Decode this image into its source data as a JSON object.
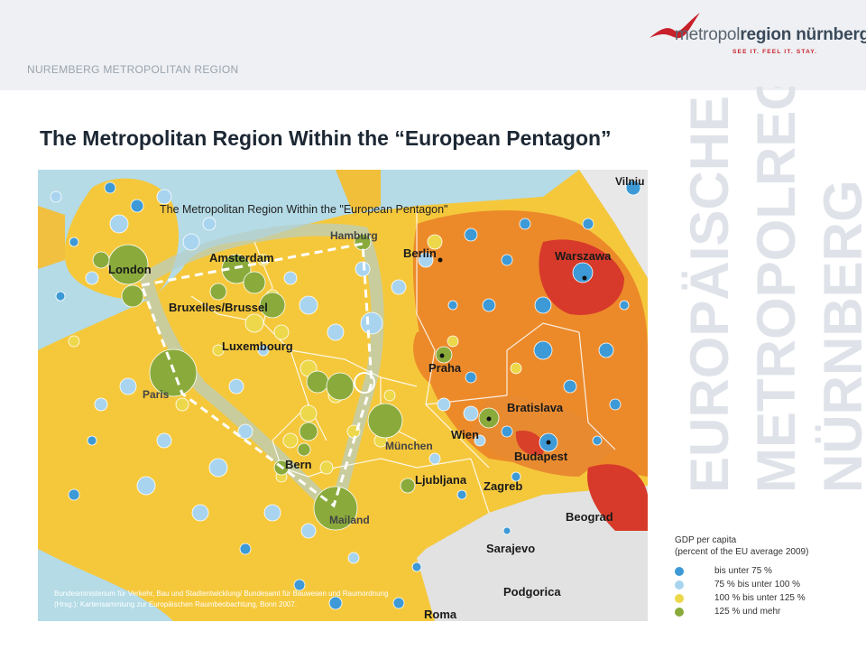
{
  "header": {
    "region_label": "NUREMBERG METROPOLITAN REGION",
    "logo_text_light": "metropol",
    "logo_text_bold": "region nürnberg",
    "logo_tagline": "SEE IT. FEEL IT. STAY."
  },
  "page_title": "The  Metropolitan Region Within the  “European Pentagon”",
  "watermark_lines": [
    "EUROPÄISCHE",
    "METROPOLREGION",
    "NÜRNBERG"
  ],
  "map": {
    "inset_title": "The Metropolitan Region Within the \"European Pentagon\"",
    "cities": [
      {
        "id": "hamburg",
        "name": "Hamburg"
      },
      {
        "id": "berlin",
        "name": "Berlin"
      },
      {
        "id": "warszawa",
        "name": "Warszawa"
      },
      {
        "id": "vilnius",
        "name": "Vilniu"
      },
      {
        "id": "amsterdam",
        "name": "Amsterdam"
      },
      {
        "id": "london",
        "name": "London"
      },
      {
        "id": "bruxelles",
        "name": "Bruxelles/Brussel"
      },
      {
        "id": "luxembourg",
        "name": "Luxembourg"
      },
      {
        "id": "praha",
        "name": "Praha"
      },
      {
        "id": "paris",
        "name": "Paris"
      },
      {
        "id": "bratislava",
        "name": "Bratislava"
      },
      {
        "id": "wien",
        "name": "Wien"
      },
      {
        "id": "munchen",
        "name": "München"
      },
      {
        "id": "budapest",
        "name": "Budapest"
      },
      {
        "id": "bern",
        "name": "Bern"
      },
      {
        "id": "ljubljana",
        "name": "Ljubljana"
      },
      {
        "id": "zagreb",
        "name": "Zagreb"
      },
      {
        "id": "mailand",
        "name": "Mailand"
      },
      {
        "id": "beograd",
        "name": "Beograd"
      },
      {
        "id": "sarajevo",
        "name": "Sarajevo"
      },
      {
        "id": "podgorica",
        "name": "Podgorica"
      },
      {
        "id": "roma",
        "name": "Roma"
      }
    ],
    "source_lines": [
      "Bundesministerium für Verkehr, Bau und Stadtentwicklung/ Bundesamt für Bauwesen und Raumordnung",
      "(Hrsg.): Kartensammlung zur Europäischen Raumbeobachtung, Bonn 2007."
    ]
  },
  "legend": {
    "title_line1": "GDP per capita",
    "title_line2": "(percent of the EU average 2009)",
    "items": [
      {
        "label": "bis unter   75 %",
        "color": "#3d9ad6"
      },
      {
        "label": "75 % bis unter 100 %",
        "color": "#a8d4ef"
      },
      {
        "label": "100 % bis unter 125 %",
        "color": "#ecd84a"
      },
      {
        "label": "125 % und mehr",
        "color": "#8aab3c"
      }
    ]
  },
  "colors": {
    "topbar": "#eef0f3",
    "title": "#1c2733",
    "logo_red": "#c8202a",
    "sea": "#b4dbe6",
    "gdp_band_yellow": "#f5c83c",
    "gdp_band_orange": "#ec8a2a",
    "gdp_band_red": "#d73a2a",
    "outside_region": "#e2e2e2"
  }
}
